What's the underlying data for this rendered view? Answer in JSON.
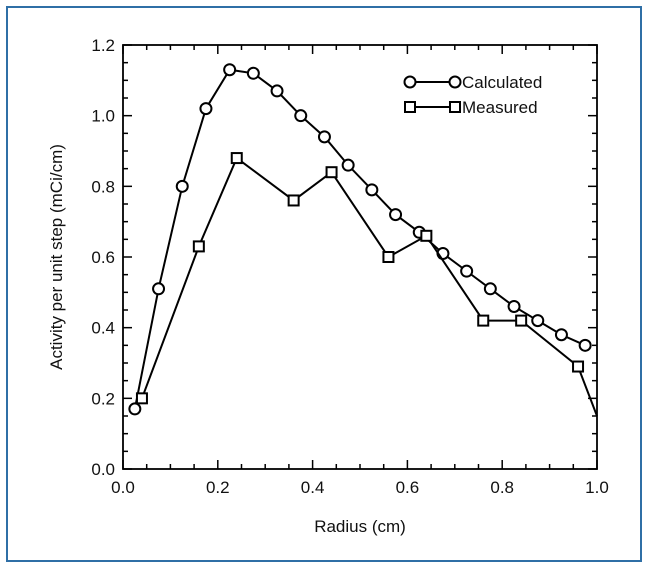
{
  "chart_data": {
    "type": "line",
    "xlabel": "Radius (cm)",
    "ylabel": "Activity per unit step (mCi/cm)",
    "xlim": [
      0,
      1.0
    ],
    "ylim": [
      0,
      1.2
    ],
    "xticks": [
      "0.0",
      "0.2",
      "0.4",
      "0.6",
      "0.8",
      "1.0"
    ],
    "yticks": [
      "0.0",
      "0.2",
      "0.4",
      "0.6",
      "0.8",
      "1.0",
      "1.2"
    ],
    "xtick_values": [
      0,
      0.2,
      0.4,
      0.6,
      0.8,
      1.0
    ],
    "ytick_values": [
      0,
      0.2,
      0.4,
      0.6,
      0.8,
      1.0,
      1.2
    ],
    "legend_position": "top-right",
    "grid": false,
    "series": [
      {
        "name": "Calculated",
        "marker": "circle",
        "color": "#000000",
        "x": [
          0.025,
          0.075,
          0.125,
          0.175,
          0.225,
          0.275,
          0.325,
          0.375,
          0.425,
          0.475,
          0.525,
          0.575,
          0.625,
          0.675,
          0.725,
          0.775,
          0.825,
          0.875,
          0.925,
          0.975
        ],
        "y": [
          0.17,
          0.51,
          0.8,
          1.02,
          1.13,
          1.12,
          1.07,
          1.0,
          0.94,
          0.86,
          0.79,
          0.72,
          0.67,
          0.61,
          0.56,
          0.51,
          0.46,
          0.42,
          0.38,
          0.35
        ]
      },
      {
        "name": "Measured",
        "marker": "square",
        "color": "#000000",
        "x": [
          0.04,
          0.16,
          0.24,
          0.36,
          0.44,
          0.56,
          0.64,
          0.76,
          0.84,
          0.96,
          1.0
        ],
        "y": [
          0.2,
          0.63,
          0.88,
          0.76,
          0.84,
          0.6,
          0.66,
          0.42,
          0.42,
          0.29,
          0.15
        ]
      }
    ]
  }
}
